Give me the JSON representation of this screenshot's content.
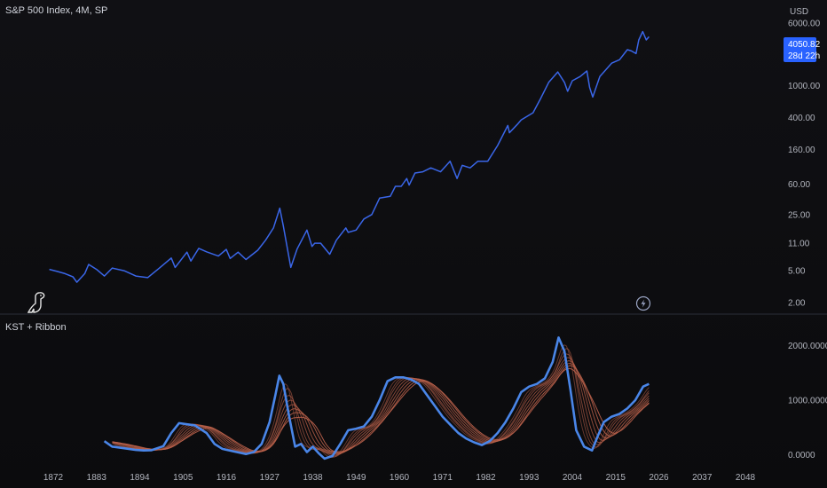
{
  "top_pane": {
    "title": "S&P 500 Index, 4M, SP",
    "currency": "USD"
  },
  "bottom_pane": {
    "title": "KST + Ribbon"
  },
  "price_label": {
    "value": "4050.82",
    "countdown": "28d 22h",
    "color": "#2962ff"
  },
  "icons": {
    "logo": "dinosaur-logo-icon",
    "event": "lightning-bolt-icon"
  },
  "colors": {
    "price": "#3a66e8",
    "kst": "#4a86e8",
    "ribbon": "#b8604a",
    "accent": "#2962ff",
    "background": "#0f0f10"
  },
  "chart_data": [
    {
      "type": "line",
      "title": "S&P 500 Index, 4M, SP",
      "ylabel": "USD",
      "yscale": "log",
      "ylim": [
        1.6,
        9000
      ],
      "xlim": [
        1867,
        2053
      ],
      "y_ticks": [
        2,
        5,
        11,
        25,
        60,
        160,
        400,
        1000,
        6000
      ],
      "y_tick_labels": [
        "2.00",
        "5.00",
        "11.00",
        "25.00",
        "60.00",
        "160.00",
        "400.00",
        "1000.00",
        "6000.00"
      ],
      "x_ticks": [
        1872,
        1883,
        1894,
        1905,
        1916,
        1927,
        1938,
        1949,
        1960,
        1971,
        1982,
        1993,
        2004,
        2015,
        2026,
        2037,
        2048
      ],
      "grid": false,
      "series": [
        {
          "x": [
            1871,
            1873,
            1875,
            1877,
            1878,
            1880,
            1881,
            1883,
            1885,
            1887,
            1890,
            1893,
            1896,
            1899,
            1902,
            1903,
            1906,
            1907,
            1909,
            1911,
            1914,
            1916,
            1917,
            1919,
            1921,
            1924,
            1926,
            1928,
            1929.6,
            1930.5,
            1932.4,
            1934,
            1936.5,
            1937.8,
            1938.5,
            1940,
            1942.3,
            1944,
            1946.4,
            1947,
            1949,
            1951,
            1953,
            1955,
            1957.7,
            1959,
            1960.5,
            1961.9,
            1962.5,
            1964,
            1966,
            1968,
            1970.5,
            1972.9,
            1974.7,
            1976,
            1978,
            1980,
            1982.5,
            1985,
            1987.6,
            1988,
            1990,
            1991,
            1994,
            1996,
            1998,
            2000.3,
            2002,
            2002.8,
            2004,
            2006,
            2007.7,
            2008.4,
            2009.2,
            2011,
            2014,
            2016,
            2018,
            2019,
            2020.2,
            2020.9,
            2021.9,
            2022.8,
            2023.5
          ],
          "values": [
            5.2,
            4.9,
            4.6,
            4.2,
            3.6,
            4.6,
            6.0,
            5.2,
            4.3,
            5.4,
            5.0,
            4.3,
            4.1,
            5.4,
            7.2,
            5.5,
            8.5,
            6.6,
            9.5,
            8.6,
            7.6,
            9.2,
            7.1,
            8.5,
            6.9,
            9.0,
            12.0,
            17.0,
            30.0,
            18.0,
            5.5,
            9.3,
            16.0,
            10.0,
            11.0,
            11.0,
            8.0,
            12.0,
            17.0,
            15.0,
            16.0,
            22.0,
            25.0,
            40.0,
            42.0,
            56.0,
            56.0,
            70.0,
            58.0,
            82.0,
            85.0,
            95.0,
            85.0,
            115.0,
            70.0,
            102.0,
            95.0,
            115.0,
            115.0,
            180.0,
            320.0,
            260.0,
            330.0,
            375.0,
            460.0,
            700.0,
            1100.0,
            1480.0,
            1100.0,
            850.0,
            1150.0,
            1300.0,
            1520.0,
            950.0,
            720.0,
            1300.0,
            1900.0,
            2100.0,
            2800.0,
            2700.0,
            2500.0,
            3700.0,
            4700.0,
            3700.0,
            4050.82
          ]
        }
      ]
    },
    {
      "type": "line",
      "title": "KST + Ribbon",
      "ylim": [
        -250,
        2400
      ],
      "xlim": [
        1867,
        2053
      ],
      "y_ticks": [
        0,
        1000,
        2000
      ],
      "y_tick_labels": [
        "0.0000",
        "1000.0000",
        "2000.0000"
      ],
      "x_ticks": [
        1872,
        1883,
        1894,
        1905,
        1916,
        1927,
        1938,
        1949,
        1960,
        1971,
        1982,
        1993,
        2004,
        2015,
        2026,
        2037,
        2048
      ],
      "grid": false,
      "series": [
        {
          "name": "",
          "x": [
            1885,
            1887,
            1890,
            1893,
            1895,
            1897,
            1900,
            1902,
            1904,
            1906,
            1908,
            1911,
            1913,
            1915,
            1918,
            1921,
            1923,
            1925,
            1927,
            1928.5,
            1929.5,
            1930.5,
            1932,
            1933.5,
            1935,
            1936.5,
            1938,
            1939.5,
            1941,
            1943,
            1945,
            1947,
            1949,
            1951,
            1953,
            1955,
            1957,
            1959,
            1961,
            1963,
            1965,
            1967,
            1969,
            1971,
            1973,
            1975,
            1977,
            1979,
            1981,
            1983,
            1985,
            1987,
            1989,
            1991,
            1993,
            1995,
            1997,
            1999,
            2000.5,
            2002,
            2003.5,
            2005,
            2007,
            2009,
            2010.5,
            2012,
            2014,
            2016,
            2018,
            2020,
            2022,
            2023.5
          ],
          "values": [
            250,
            150,
            120,
            90,
            80,
            85,
            160,
            400,
            580,
            560,
            540,
            400,
            200,
            110,
            60,
            15,
            50,
            200,
            600,
            1100,
            1450,
            1300,
            700,
            150,
            200,
            50,
            150,
            30,
            -70,
            -20,
            200,
            450,
            480,
            520,
            700,
            1000,
            1350,
            1420,
            1420,
            1380,
            1300,
            1100,
            900,
            700,
            550,
            400,
            300,
            230,
            180,
            250,
            400,
            600,
            850,
            1150,
            1250,
            1300,
            1400,
            1700,
            2150,
            1900,
            1200,
            450,
            150,
            80,
            350,
            600,
            700,
            750,
            850,
            1000,
            1250,
            1300
          ]
        }
      ],
      "ribbon": {
        "line_count": 8,
        "color": "#b8604a"
      }
    }
  ]
}
